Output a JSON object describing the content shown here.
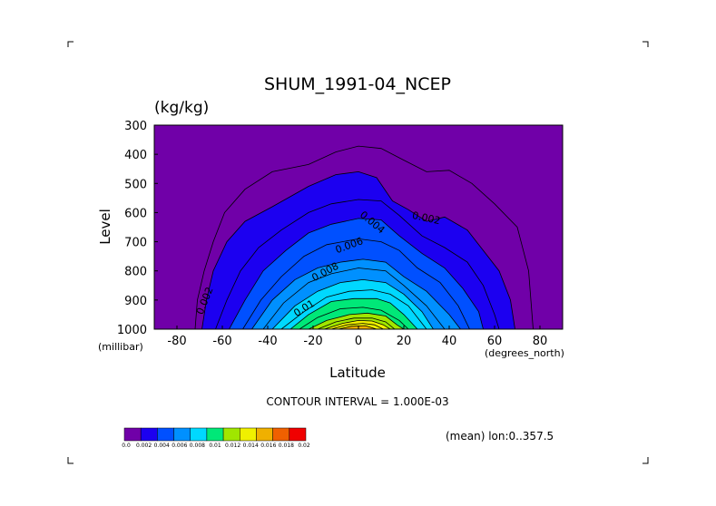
{
  "chart_data": {
    "type": "heatmap",
    "subtype": "filled-contour",
    "title": "SHUM_1991-04_NCEP",
    "units": "(kg/kg)",
    "xlabel": "Latitude",
    "ylabel": "Level",
    "x_unit": "(degrees_north)",
    "y_unit": "(millibar)",
    "xlim": [
      -90,
      90
    ],
    "ylim": [
      1000,
      300
    ],
    "x_ticks": [
      "-80",
      "-60",
      "-40",
      "-20",
      "0",
      "20",
      "40",
      "60",
      "80"
    ],
    "y_ticks": [
      "300",
      "400",
      "500",
      "600",
      "700",
      "800",
      "900",
      "1000"
    ],
    "contour_interval": "CONTOUR INTERVAL = 1.000E-03",
    "averaging_note": "(mean) lon:0..357.5",
    "contour_labels": [
      "0.002",
      "0.004",
      "0.006",
      "0.008",
      "0.01",
      "0.002"
    ],
    "colorbar": {
      "ticks": [
        "0.0",
        "0.002",
        "0.004",
        "0.006",
        "0.008",
        "0.01",
        "0.012",
        "0.014",
        "0.016",
        "0.018",
        "0.02"
      ],
      "colors": [
        "#7000a8",
        "#1c00f0",
        "#0050ff",
        "#0090ff",
        "#00d8ff",
        "#00e878",
        "#a0e600",
        "#f0f000",
        "#f0b000",
        "#f06000",
        "#f00000"
      ]
    },
    "series": [
      {
        "level": 0.001,
        "points": [
          [
            -72,
            1000
          ],
          [
            -71,
            900
          ],
          [
            -68,
            800
          ],
          [
            -64,
            700
          ],
          [
            -59,
            600
          ],
          [
            -50,
            520
          ],
          [
            -38,
            460
          ],
          [
            -22,
            435
          ],
          [
            -10,
            392
          ],
          [
            0,
            372
          ],
          [
            10,
            380
          ],
          [
            20,
            420
          ],
          [
            30,
            460
          ],
          [
            40,
            455
          ],
          [
            50,
            500
          ],
          [
            60,
            570
          ],
          [
            70,
            650
          ],
          [
            75,
            800
          ],
          [
            77,
            1000
          ]
        ]
      },
      {
        "level": 0.002,
        "points": [
          [
            -69,
            1000
          ],
          [
            -67,
            900
          ],
          [
            -64,
            800
          ],
          [
            -58,
            700
          ],
          [
            -50,
            630
          ],
          [
            -38,
            580
          ],
          [
            -22,
            510
          ],
          [
            -10,
            470
          ],
          [
            0,
            460
          ],
          [
            8,
            480
          ],
          [
            15,
            560
          ],
          [
            22,
            590
          ],
          [
            30,
            630
          ],
          [
            38,
            615
          ],
          [
            48,
            660
          ],
          [
            56,
            740
          ],
          [
            62,
            800
          ],
          [
            67,
            900
          ],
          [
            69,
            1000
          ]
        ]
      },
      {
        "level": 0.003,
        "points": [
          [
            -63,
            1000
          ],
          [
            -58,
            900
          ],
          [
            -52,
            800
          ],
          [
            -44,
            720
          ],
          [
            -34,
            660
          ],
          [
            -22,
            600
          ],
          [
            -12,
            570
          ],
          [
            0,
            555
          ],
          [
            10,
            560
          ],
          [
            18,
            610
          ],
          [
            28,
            680
          ],
          [
            38,
            720
          ],
          [
            48,
            770
          ],
          [
            55,
            850
          ],
          [
            60,
            950
          ],
          [
            62,
            1000
          ]
        ]
      },
      {
        "level": 0.004,
        "points": [
          [
            -57,
            1000
          ],
          [
            -50,
            900
          ],
          [
            -42,
            800
          ],
          [
            -32,
            730
          ],
          [
            -22,
            670
          ],
          [
            -12,
            640
          ],
          [
            0,
            620
          ],
          [
            10,
            625
          ],
          [
            18,
            680
          ],
          [
            28,
            740
          ],
          [
            38,
            790
          ],
          [
            46,
            860
          ],
          [
            53,
            940
          ],
          [
            55,
            1000
          ]
        ]
      },
      {
        "level": 0.005,
        "points": [
          [
            -51,
            1000
          ],
          [
            -43,
            900
          ],
          [
            -34,
            820
          ],
          [
            -24,
            750
          ],
          [
            -14,
            710
          ],
          [
            0,
            690
          ],
          [
            10,
            700
          ],
          [
            18,
            730
          ],
          [
            26,
            790
          ],
          [
            36,
            840
          ],
          [
            44,
            920
          ],
          [
            49,
            1000
          ]
        ]
      },
      {
        "level": 0.006,
        "points": [
          [
            -47,
            1000
          ],
          [
            -38,
            900
          ],
          [
            -28,
            830
          ],
          [
            -18,
            790
          ],
          [
            -8,
            770
          ],
          [
            2,
            760
          ],
          [
            12,
            770
          ],
          [
            20,
            820
          ],
          [
            30,
            870
          ],
          [
            40,
            950
          ],
          [
            45,
            1000
          ]
        ]
      },
      {
        "level": 0.007,
        "points": [
          [
            -42,
            1000
          ],
          [
            -33,
            910
          ],
          [
            -22,
            840
          ],
          [
            -12,
            810
          ],
          [
            0,
            790
          ],
          [
            12,
            800
          ],
          [
            20,
            850
          ],
          [
            30,
            920
          ],
          [
            38,
            1000
          ]
        ]
      },
      {
        "level": 0.008,
        "points": [
          [
            -38,
            1000
          ],
          [
            -28,
            920
          ],
          [
            -18,
            870
          ],
          [
            -8,
            840
          ],
          [
            2,
            830
          ],
          [
            12,
            840
          ],
          [
            20,
            880
          ],
          [
            28,
            940
          ],
          [
            33,
            1000
          ]
        ]
      },
      {
        "level": 0.009,
        "points": [
          [
            -34,
            1000
          ],
          [
            -24,
            940
          ],
          [
            -14,
            890
          ],
          [
            -4,
            870
          ],
          [
            6,
            865
          ],
          [
            14,
            880
          ],
          [
            22,
            920
          ],
          [
            30,
            1000
          ]
        ]
      },
      {
        "level": 0.01,
        "points": [
          [
            -30,
            1000
          ],
          [
            -22,
            950
          ],
          [
            -12,
            905
          ],
          [
            -2,
            895
          ],
          [
            8,
            895
          ],
          [
            14,
            910
          ],
          [
            20,
            950
          ],
          [
            26,
            1000
          ]
        ]
      },
      {
        "level": 0.011,
        "points": [
          [
            -26,
            1000
          ],
          [
            -18,
            960
          ],
          [
            -8,
            930
          ],
          [
            2,
            925
          ],
          [
            10,
            935
          ],
          [
            18,
            970
          ],
          [
            22,
            1000
          ]
        ]
      },
      {
        "level": 0.012,
        "points": [
          [
            -22,
            1000
          ],
          [
            -14,
            970
          ],
          [
            -4,
            950
          ],
          [
            4,
            945
          ],
          [
            12,
            955
          ],
          [
            17,
            985
          ],
          [
            20,
            1000
          ]
        ]
      },
      {
        "level": 0.013,
        "points": [
          [
            -18,
            1000
          ],
          [
            -10,
            975
          ],
          [
            -2,
            962
          ],
          [
            6,
            962
          ],
          [
            12,
            975
          ],
          [
            16,
            1000
          ]
        ]
      },
      {
        "level": 0.014,
        "points": [
          [
            -15,
            1000
          ],
          [
            -7,
            980
          ],
          [
            0,
            970
          ],
          [
            6,
            972
          ],
          [
            11,
            985
          ],
          [
            14,
            1000
          ]
        ]
      },
      {
        "level": 0.015,
        "points": [
          [
            -12,
            1000
          ],
          [
            -5,
            985
          ],
          [
            2,
            980
          ],
          [
            7,
            985
          ],
          [
            11,
            1000
          ]
        ]
      },
      {
        "level": 0.016,
        "points": [
          [
            -9,
            1000
          ],
          [
            -3,
            990
          ],
          [
            3,
            988
          ],
          [
            8,
            1000
          ]
        ]
      }
    ]
  }
}
